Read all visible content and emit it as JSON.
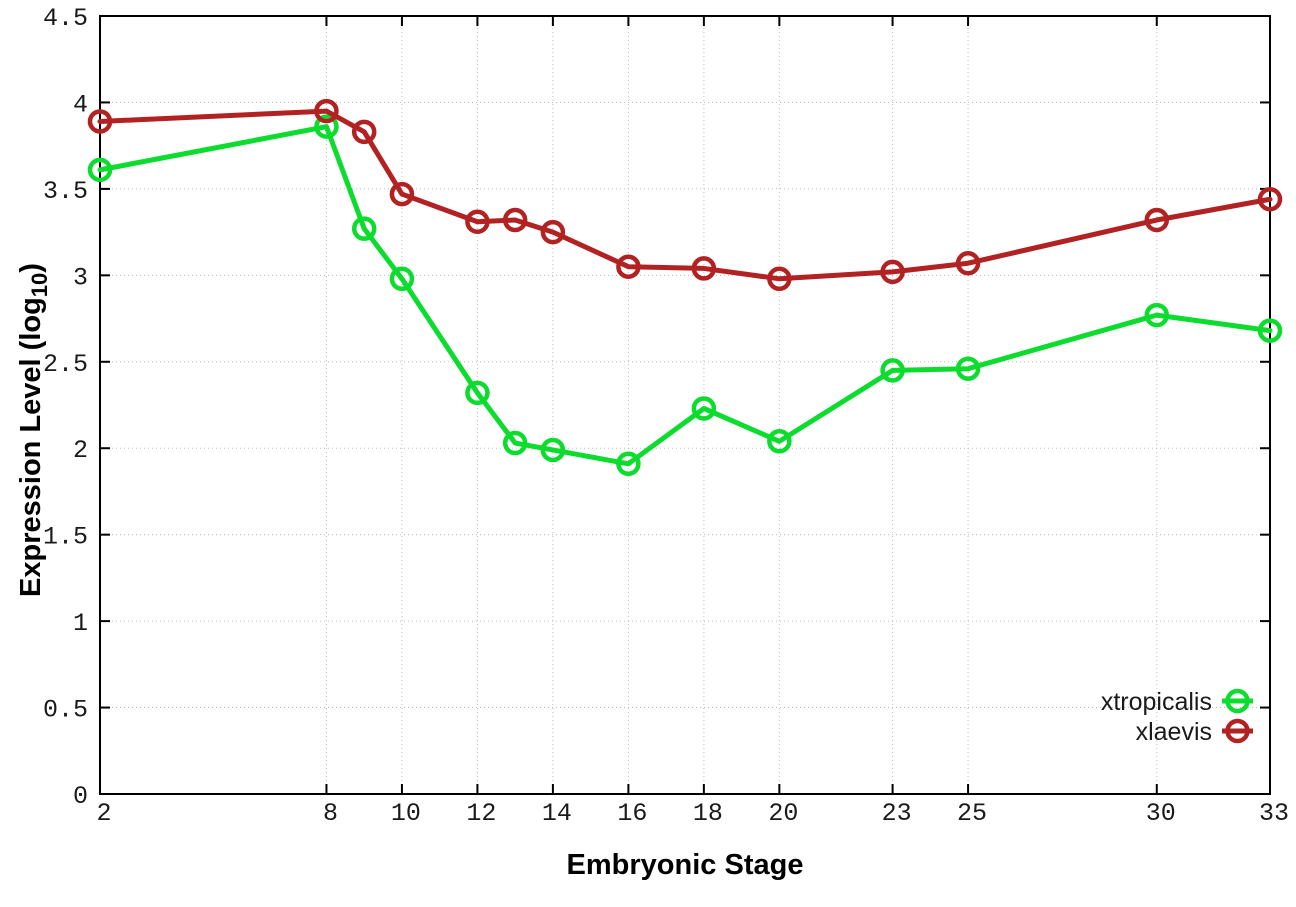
{
  "chart_data": {
    "type": "line",
    "title": "",
    "xlabel": "Embryonic Stage",
    "ylabel": "Expression Level (log10)",
    "ylabel_rich": {
      "prefix": "Expression Level (log",
      "subscript": "10",
      "suffix": ")"
    },
    "x": [
      2,
      8,
      9,
      10,
      12,
      13,
      14,
      16,
      18,
      20,
      23,
      25,
      30,
      33
    ],
    "series": [
      {
        "name": "xtropicalis",
        "color": "#0bdc2e",
        "values": [
          3.61,
          3.86,
          3.27,
          2.98,
          2.32,
          2.03,
          1.99,
          1.91,
          2.23,
          2.04,
          2.45,
          2.46,
          2.77,
          2.68
        ]
      },
      {
        "name": "xlaevis",
        "color": "#b22222",
        "values": [
          3.89,
          3.95,
          3.83,
          3.47,
          3.31,
          3.32,
          3.25,
          3.05,
          3.04,
          2.98,
          3.02,
          3.07,
          3.32,
          3.44
        ]
      }
    ],
    "xlim": [
      2,
      33
    ],
    "ylim": [
      0,
      4.5
    ],
    "x_ticks": {
      "values": [
        2,
        8,
        10,
        12,
        14,
        16,
        18,
        20,
        23,
        25,
        30,
        33
      ],
      "labels": [
        "2",
        "8",
        "10",
        "12",
        "14",
        "16",
        "18",
        "20",
        "23",
        "25",
        "30",
        "33"
      ]
    },
    "y_ticks": {
      "values": [
        0,
        0.5,
        1,
        1.5,
        2,
        2.5,
        3,
        3.5,
        4,
        4.5
      ],
      "labels": [
        "0",
        "0.5",
        "1",
        "1.5",
        "2",
        "2.5",
        "3",
        "3.5",
        "4",
        "4.5"
      ]
    },
    "grid": true,
    "marker": "open-circle",
    "legend": {
      "position": "inside-bottom-right",
      "entries": [
        "xtropicalis",
        "xlaevis"
      ]
    },
    "colors": {
      "grid": "#bdbdbd",
      "axis": "#000000",
      "background": "#ffffff"
    }
  }
}
